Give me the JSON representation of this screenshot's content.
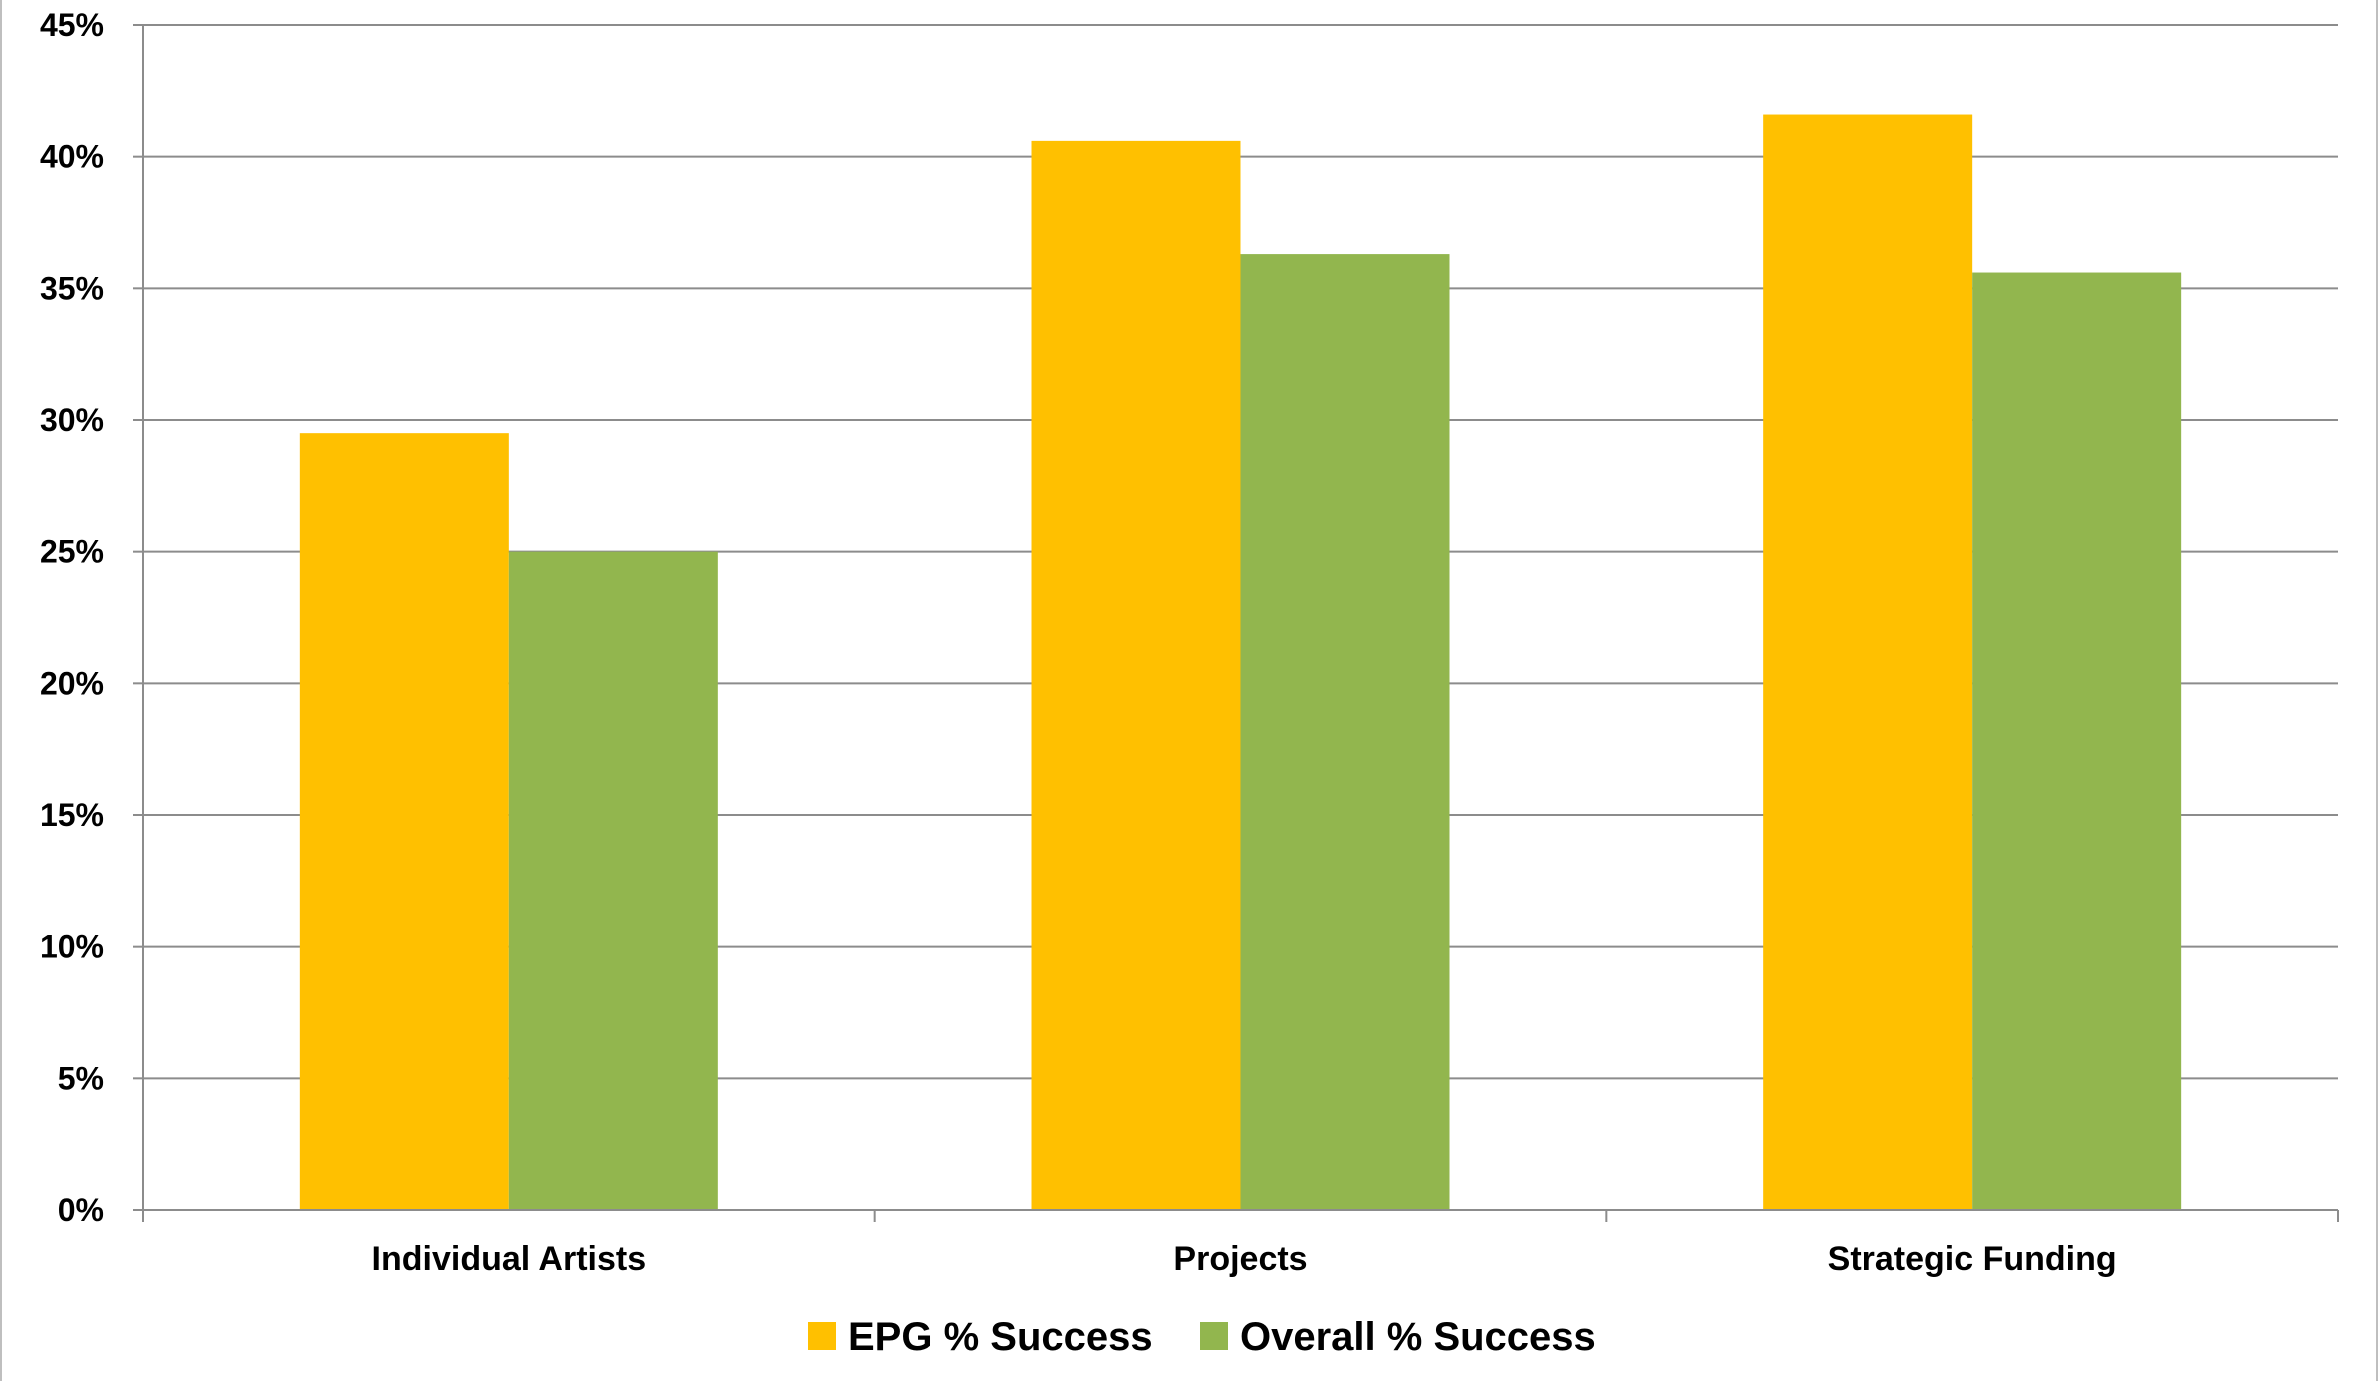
{
  "chart_data": {
    "type": "bar",
    "title": "",
    "xlabel": "",
    "ylabel": "",
    "categories": [
      "Individual Artists",
      "Projects",
      "Strategic Funding"
    ],
    "series": [
      {
        "name": "EPG % Success",
        "color": "#FFC000",
        "values": [
          29.5,
          40.6,
          41.6
        ]
      },
      {
        "name": "Overall % Success",
        "color": "#92B64E",
        "values": [
          25.0,
          36.3,
          35.6
        ]
      }
    ],
    "ylim": [
      0,
      45
    ],
    "y_ticks": [
      0,
      5,
      10,
      15,
      20,
      25,
      30,
      35,
      40,
      45
    ],
    "y_tick_labels": [
      "0%",
      "5%",
      "10%",
      "15%",
      "20%",
      "25%",
      "30%",
      "35%",
      "40%",
      "45%"
    ],
    "grid": true,
    "legend_position": "bottom-center"
  }
}
